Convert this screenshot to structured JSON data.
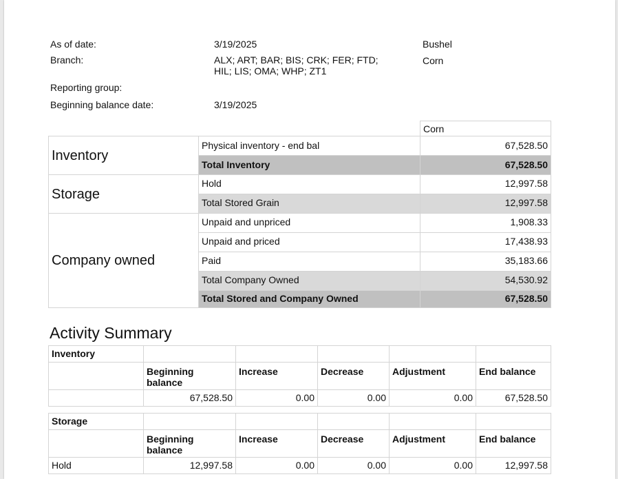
{
  "header": {
    "as_of_label": "As of date:",
    "as_of_value": "3/19/2025",
    "unit": "Bushel",
    "branch_label": "Branch:",
    "branch_line1": "ALX; ART; BAR; BIS; CRK; FER; FTD;",
    "branch_line2": "HIL; LIS; OMA; WHP; ZT1",
    "commodity": "Corn",
    "reporting_group_label": "Reporting group:",
    "beginning_balance_date_label": "Beginning balance date:",
    "beginning_balance_date_value": "3/19/2025"
  },
  "position": {
    "column_header": "Corn",
    "categories": {
      "inventory": "Inventory",
      "storage": "Storage",
      "company_owned": "Company owned"
    },
    "rows": [
      {
        "label": "Physical inventory - end bal",
        "value": "67,528.50"
      },
      {
        "label": "Total Inventory",
        "value": "67,528.50"
      },
      {
        "label": "Hold",
        "value": "12,997.58"
      },
      {
        "label": "Total Stored Grain",
        "value": "12,997.58"
      },
      {
        "label": "Unpaid and unpriced",
        "value": "1,908.33"
      },
      {
        "label": "Unpaid and priced",
        "value": "17,438.93"
      },
      {
        "label": "Paid",
        "value": "35,183.66"
      },
      {
        "label": "Total Company Owned",
        "value": "54,530.92"
      },
      {
        "label": "Total Stored and Company Owned",
        "value": "67,528.50"
      }
    ]
  },
  "activity": {
    "title": "Activity Summary",
    "headers": {
      "beginning_l1": "Beginning",
      "beginning_l2": "balance",
      "increase": "Increase",
      "decrease": "Decrease",
      "adjustment": "Adjustment",
      "end_balance": "End balance"
    },
    "inventory": {
      "section": "Inventory",
      "row_label": "",
      "beginning": "67,528.50",
      "increase": "0.00",
      "decrease": "0.00",
      "adjustment": "0.00",
      "end": "67,528.50"
    },
    "storage": {
      "section": "Storage",
      "row_label": "Hold",
      "beginning": "12,997.58",
      "increase": "0.00",
      "decrease": "0.00",
      "adjustment": "0.00",
      "end": "12,997.58"
    }
  }
}
